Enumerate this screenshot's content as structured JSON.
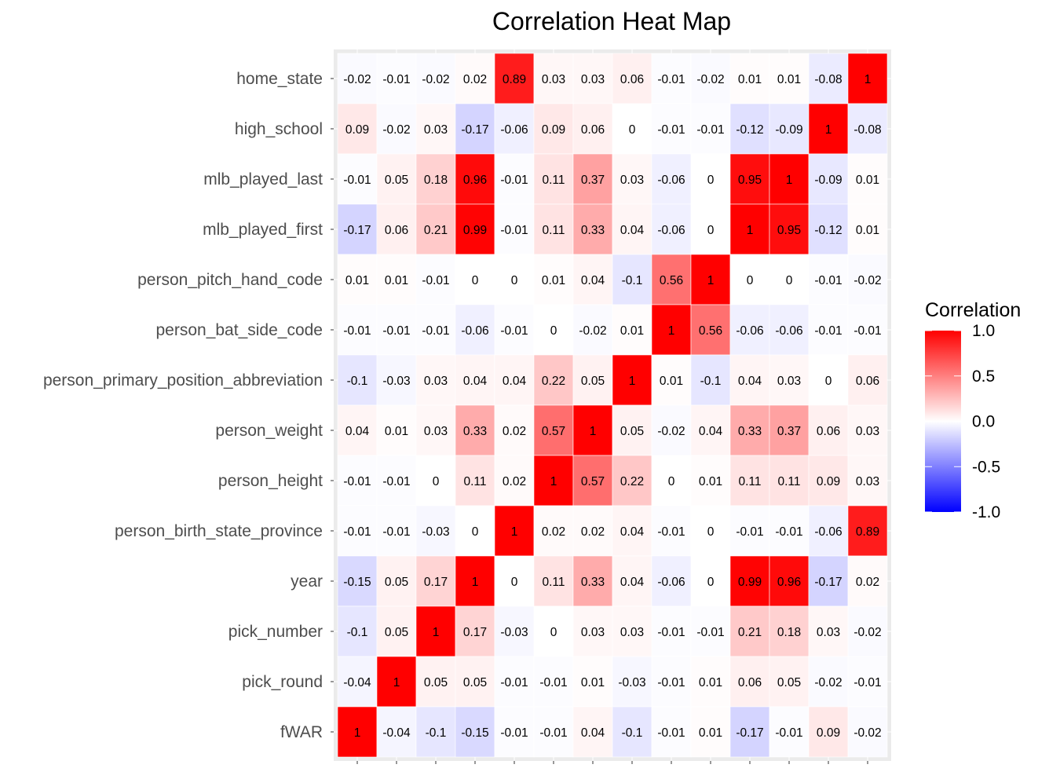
{
  "chart_data": {
    "type": "heatmap",
    "title": "Correlation Heat Map",
    "xlabel": "",
    "ylabel": "",
    "rows": [
      "home_state",
      "high_school",
      "mlb_played_last",
      "mlb_played_first",
      "person_pitch_hand_code",
      "person_bat_side_code",
      "person_primary_position_abbreviation",
      "person_weight",
      "person_height",
      "person_birth_state_province",
      "year",
      "pick_number",
      "pick_round",
      "fWAR"
    ],
    "values": [
      [
        "-0.02",
        "-0.01",
        "-0.02",
        "0.02",
        "0.89",
        "0.03",
        "0.03",
        "0.06",
        "-0.01",
        "-0.02",
        "0.01",
        "0.01",
        "-0.08",
        "1"
      ],
      [
        "0.09",
        "-0.02",
        "0.03",
        "-0.17",
        "-0.06",
        "0.09",
        "0.06",
        "0",
        "-0.01",
        "-0.01",
        "-0.12",
        "-0.09",
        "1",
        "-0.08"
      ],
      [
        "-0.01",
        "0.05",
        "0.18",
        "0.96",
        "-0.01",
        "0.11",
        "0.37",
        "0.03",
        "-0.06",
        "0",
        "0.95",
        "1",
        "-0.09",
        "0.01"
      ],
      [
        "-0.17",
        "0.06",
        "0.21",
        "0.99",
        "-0.01",
        "0.11",
        "0.33",
        "0.04",
        "-0.06",
        "0",
        "1",
        "0.95",
        "-0.12",
        "0.01"
      ],
      [
        "0.01",
        "0.01",
        "-0.01",
        "0",
        "0",
        "0.01",
        "0.04",
        "-0.1",
        "0.56",
        "1",
        "0",
        "0",
        "-0.01",
        "-0.02"
      ],
      [
        "-0.01",
        "-0.01",
        "-0.01",
        "-0.06",
        "-0.01",
        "0",
        "-0.02",
        "0.01",
        "1",
        "0.56",
        "-0.06",
        "-0.06",
        "-0.01",
        "-0.01"
      ],
      [
        "-0.1",
        "-0.03",
        "0.03",
        "0.04",
        "0.04",
        "0.22",
        "0.05",
        "1",
        "0.01",
        "-0.1",
        "0.04",
        "0.03",
        "0",
        "0.06"
      ],
      [
        "0.04",
        "0.01",
        "0.03",
        "0.33",
        "0.02",
        "0.57",
        "1",
        "0.05",
        "-0.02",
        "0.04",
        "0.33",
        "0.37",
        "0.06",
        "0.03"
      ],
      [
        "-0.01",
        "-0.01",
        "0",
        "0.11",
        "0.02",
        "1",
        "0.57",
        "0.22",
        "0",
        "0.01",
        "0.11",
        "0.11",
        "0.09",
        "0.03"
      ],
      [
        "-0.01",
        "-0.01",
        "-0.03",
        "0",
        "1",
        "0.02",
        "0.02",
        "0.04",
        "-0.01",
        "0",
        "-0.01",
        "-0.01",
        "-0.06",
        "0.89"
      ],
      [
        "-0.15",
        "0.05",
        "0.17",
        "1",
        "0",
        "0.11",
        "0.33",
        "0.04",
        "-0.06",
        "0",
        "0.99",
        "0.96",
        "-0.17",
        "0.02"
      ],
      [
        "-0.1",
        "0.05",
        "1",
        "0.17",
        "-0.03",
        "0",
        "0.03",
        "0.03",
        "-0.01",
        "-0.01",
        "0.21",
        "0.18",
        "0.03",
        "-0.02"
      ],
      [
        "-0.04",
        "1",
        "0.05",
        "0.05",
        "-0.01",
        "-0.01",
        "0.01",
        "-0.03",
        "-0.01",
        "0.01",
        "0.06",
        "0.05",
        "-0.02",
        "-0.01"
      ],
      [
        "1",
        "-0.04",
        "-0.1",
        "-0.15",
        "-0.01",
        "-0.01",
        "0.04",
        "-0.1",
        "-0.01",
        "0.01",
        "-0.17",
        "-0.01",
        "0.09",
        "-0.02"
      ]
    ],
    "scale": {
      "min": -1.0,
      "max": 1.0,
      "low_color": "#0000ff",
      "mid_color": "#ffffff",
      "high_color": "#ff0000"
    },
    "legend": {
      "title": "Correlation",
      "ticks": [
        "1.0",
        "0.5",
        "0.0",
        "-0.5",
        "-1.0"
      ],
      "tick_values": [
        1.0,
        0.5,
        0.0,
        -0.5,
        -1.0
      ],
      "placement": "right"
    },
    "panel_background": "#ebebeb",
    "grid": true
  }
}
